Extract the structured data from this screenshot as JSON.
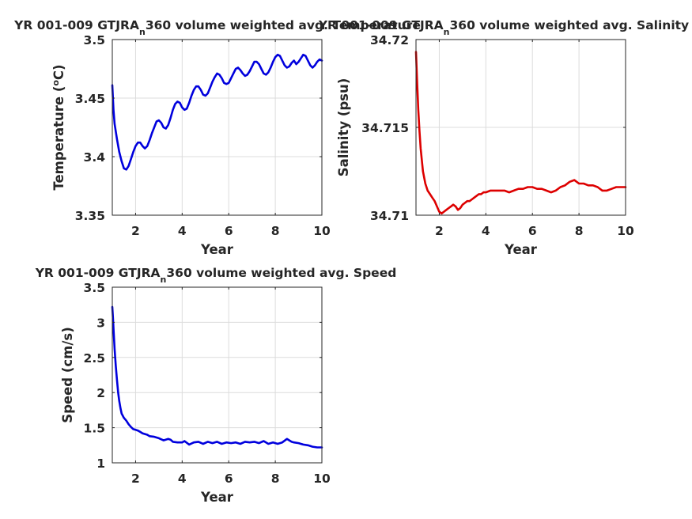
{
  "chart_data": [
    {
      "id": "temperature",
      "type": "line",
      "title_parts": [
        "YR 001-009 GTJRA",
        "n",
        "360 volume weighted avg. Temperature"
      ],
      "xlabel": "Year",
      "ylabel_parts": [
        "Temperature (",
        "o",
        "C)"
      ],
      "xlim": [
        1,
        10
      ],
      "ylim": [
        3.35,
        3.5
      ],
      "xticks": [
        2,
        4,
        6,
        8,
        10
      ],
      "xtick_labels": [
        "2",
        "4",
        "6",
        "8",
        "10"
      ],
      "yticks": [
        3.35,
        3.4,
        3.45,
        3.5
      ],
      "ytick_labels": [
        "3.35",
        "3.4",
        "3.45",
        "3.5"
      ],
      "grid": true,
      "series": [
        {
          "color": "#0000dd",
          "x": [
            1.0,
            1.05,
            1.1,
            1.2,
            1.3,
            1.4,
            1.5,
            1.6,
            1.7,
            1.8,
            1.9,
            2.0,
            2.1,
            2.2,
            2.3,
            2.4,
            2.5,
            2.6,
            2.7,
            2.8,
            2.9,
            3.0,
            3.1,
            3.2,
            3.3,
            3.4,
            3.5,
            3.6,
            3.7,
            3.8,
            3.9,
            4.0,
            4.1,
            4.2,
            4.3,
            4.4,
            4.5,
            4.6,
            4.7,
            4.8,
            4.9,
            5.0,
            5.1,
            5.2,
            5.3,
            5.4,
            5.5,
            5.6,
            5.7,
            5.8,
            5.9,
            6.0,
            6.1,
            6.2,
            6.3,
            6.4,
            6.5,
            6.6,
            6.7,
            6.8,
            6.9,
            7.0,
            7.1,
            7.2,
            7.3,
            7.4,
            7.5,
            7.6,
            7.7,
            7.8,
            7.9,
            8.0,
            8.1,
            8.2,
            8.3,
            8.4,
            8.5,
            8.6,
            8.7,
            8.8,
            8.9,
            9.0,
            9.1,
            9.2,
            9.3,
            9.4,
            9.5,
            9.6,
            9.7,
            9.8,
            9.9,
            10.0
          ],
          "y": [
            3.461,
            3.44,
            3.428,
            3.415,
            3.404,
            3.396,
            3.39,
            3.389,
            3.392,
            3.398,
            3.404,
            3.409,
            3.412,
            3.412,
            3.409,
            3.407,
            3.409,
            3.414,
            3.42,
            3.425,
            3.43,
            3.431,
            3.429,
            3.425,
            3.424,
            3.427,
            3.433,
            3.44,
            3.445,
            3.447,
            3.446,
            3.442,
            3.44,
            3.441,
            3.446,
            3.452,
            3.457,
            3.46,
            3.46,
            3.457,
            3.453,
            3.452,
            3.454,
            3.459,
            3.464,
            3.468,
            3.471,
            3.47,
            3.467,
            3.463,
            3.462,
            3.463,
            3.467,
            3.471,
            3.475,
            3.476,
            3.474,
            3.471,
            3.469,
            3.47,
            3.473,
            3.477,
            3.481,
            3.481,
            3.479,
            3.475,
            3.471,
            3.47,
            3.472,
            3.476,
            3.481,
            3.485,
            3.487,
            3.486,
            3.482,
            3.478,
            3.476,
            3.477,
            3.48,
            3.482,
            3.479,
            3.481,
            3.484,
            3.487,
            3.486,
            3.482,
            3.478,
            3.476,
            3.478,
            3.481,
            3.483,
            3.482
          ]
        }
      ]
    },
    {
      "id": "salinity",
      "type": "line",
      "title_parts": [
        "YR 001-009 GTJRA",
        "n",
        "360 volume weighted avg. Salinity"
      ],
      "xlabel": "Year",
      "ylabel_parts": [
        "Salinity (psu)"
      ],
      "xlim": [
        1,
        10
      ],
      "ylim": [
        34.71,
        34.72
      ],
      "xticks": [
        2,
        4,
        6,
        8,
        10
      ],
      "xtick_labels": [
        "2",
        "4",
        "6",
        "8",
        "10"
      ],
      "yticks": [
        34.71,
        34.715,
        34.72
      ],
      "ytick_labels": [
        "34.71",
        "34.715",
        "34.72"
      ],
      "grid": true,
      "series": [
        {
          "color": "#dd0000",
          "x": [
            1.0,
            1.05,
            1.1,
            1.15,
            1.2,
            1.3,
            1.4,
            1.5,
            1.6,
            1.7,
            1.8,
            1.9,
            2.0,
            2.1,
            2.2,
            2.3,
            2.4,
            2.5,
            2.6,
            2.7,
            2.8,
            2.9,
            3.0,
            3.1,
            3.2,
            3.3,
            3.4,
            3.5,
            3.6,
            3.7,
            3.8,
            3.9,
            4.0,
            4.2,
            4.4,
            4.6,
            4.8,
            5.0,
            5.2,
            5.4,
            5.6,
            5.8,
            6.0,
            6.2,
            6.4,
            6.6,
            6.8,
            7.0,
            7.2,
            7.4,
            7.6,
            7.8,
            7.9,
            8.0,
            8.2,
            8.4,
            8.6,
            8.8,
            9.0,
            9.2,
            9.4,
            9.6,
            9.8,
            10.0
          ],
          "y": [
            34.7193,
            34.7175,
            34.716,
            34.7148,
            34.7138,
            34.7125,
            34.7118,
            34.7114,
            34.7112,
            34.711,
            34.7108,
            34.7105,
            34.7102,
            34.7101,
            34.7102,
            34.7103,
            34.7104,
            34.7105,
            34.7106,
            34.7105,
            34.7103,
            34.7104,
            34.7106,
            34.7107,
            34.7108,
            34.7108,
            34.7109,
            34.711,
            34.7111,
            34.7112,
            34.7112,
            34.7113,
            34.7113,
            34.7114,
            34.7114,
            34.7114,
            34.7114,
            34.7113,
            34.7114,
            34.7115,
            34.7115,
            34.7116,
            34.7116,
            34.7115,
            34.7115,
            34.7114,
            34.7113,
            34.7114,
            34.7116,
            34.7117,
            34.7119,
            34.712,
            34.7119,
            34.7118,
            34.7118,
            34.7117,
            34.7117,
            34.7116,
            34.7114,
            34.7114,
            34.7115,
            34.7116,
            34.7116,
            34.7116
          ]
        }
      ]
    },
    {
      "id": "speed",
      "type": "line",
      "title_parts": [
        "YR 001-009 GTJRA",
        "n",
        "360 volume weighted avg. Speed"
      ],
      "xlabel": "Year",
      "ylabel_parts": [
        "Speed (cm/s)"
      ],
      "xlim": [
        1,
        10
      ],
      "ylim": [
        1,
        3.5
      ],
      "xticks": [
        2,
        4,
        6,
        8,
        10
      ],
      "xtick_labels": [
        "2",
        "4",
        "6",
        "8",
        "10"
      ],
      "yticks": [
        1,
        1.5,
        2,
        2.5,
        3,
        3.5
      ],
      "ytick_labels": [
        "1",
        "1.5",
        "2",
        "2.5",
        "3",
        "3.5"
      ],
      "grid": true,
      "series": [
        {
          "color": "#0000dd",
          "x": [
            1.0,
            1.03,
            1.06,
            1.1,
            1.15,
            1.2,
            1.25,
            1.3,
            1.35,
            1.4,
            1.5,
            1.6,
            1.7,
            1.8,
            1.9,
            2.0,
            2.1,
            2.2,
            2.3,
            2.4,
            2.5,
            2.6,
            2.8,
            3.0,
            3.2,
            3.4,
            3.5,
            3.6,
            3.8,
            4.0,
            4.1,
            4.3,
            4.5,
            4.7,
            4.9,
            5.1,
            5.3,
            5.5,
            5.7,
            5.9,
            6.1,
            6.3,
            6.5,
            6.7,
            6.9,
            7.1,
            7.3,
            7.5,
            7.7,
            7.9,
            8.1,
            8.3,
            8.5,
            8.6,
            8.7,
            8.8,
            9.0,
            9.2,
            9.4,
            9.6,
            9.8,
            10.0
          ],
          "y": [
            3.22,
            3.05,
            2.85,
            2.62,
            2.38,
            2.18,
            2.0,
            1.88,
            1.78,
            1.7,
            1.64,
            1.6,
            1.55,
            1.51,
            1.48,
            1.47,
            1.46,
            1.44,
            1.42,
            1.41,
            1.4,
            1.38,
            1.37,
            1.35,
            1.32,
            1.34,
            1.33,
            1.3,
            1.29,
            1.29,
            1.31,
            1.26,
            1.29,
            1.3,
            1.27,
            1.3,
            1.28,
            1.3,
            1.27,
            1.29,
            1.28,
            1.29,
            1.27,
            1.3,
            1.29,
            1.3,
            1.28,
            1.31,
            1.27,
            1.29,
            1.27,
            1.29,
            1.34,
            1.32,
            1.3,
            1.29,
            1.28,
            1.26,
            1.25,
            1.23,
            1.22,
            1.22
          ]
        }
      ]
    }
  ]
}
